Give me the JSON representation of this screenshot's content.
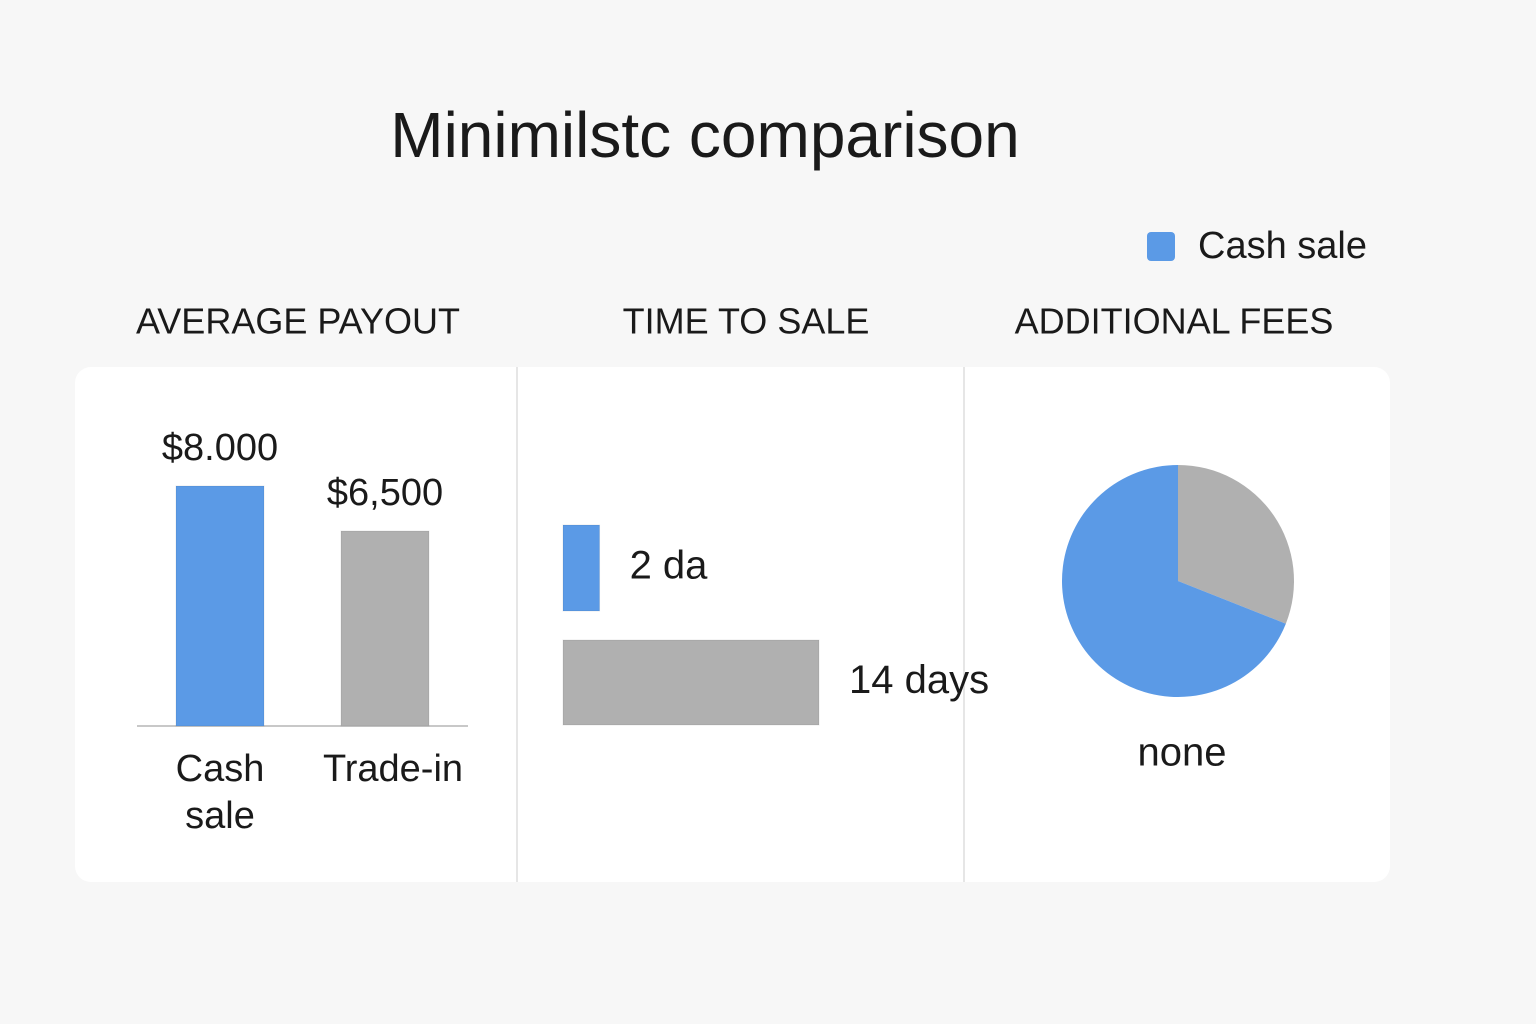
{
  "title": "Minimilstc comparison",
  "legend": [
    {
      "name": "Cash sale",
      "color": "#5b9ae6"
    }
  ],
  "chart_data": [
    {
      "type": "bar",
      "title": "AVERAGE PAYOUT",
      "categories": [
        "Cash sale",
        "Trade-in"
      ],
      "values": [
        8000,
        6500
      ],
      "value_labels": [
        "$8.000",
        "$6,500"
      ],
      "colors": [
        "#5b9ae6",
        "#b0b0b0"
      ]
    },
    {
      "type": "hbar",
      "title": "TIME TO SALE",
      "values": [
        2,
        14
      ],
      "value_labels": [
        "2 da",
        "14 days"
      ],
      "colors": [
        "#5b9ae6",
        "#b0b0b0"
      ]
    },
    {
      "type": "pie",
      "title": "ADDITIONAL FEES",
      "label": "none",
      "values": [
        31,
        69
      ],
      "colors": [
        "#b0b0b0",
        "#5b9ae6"
      ]
    }
  ]
}
